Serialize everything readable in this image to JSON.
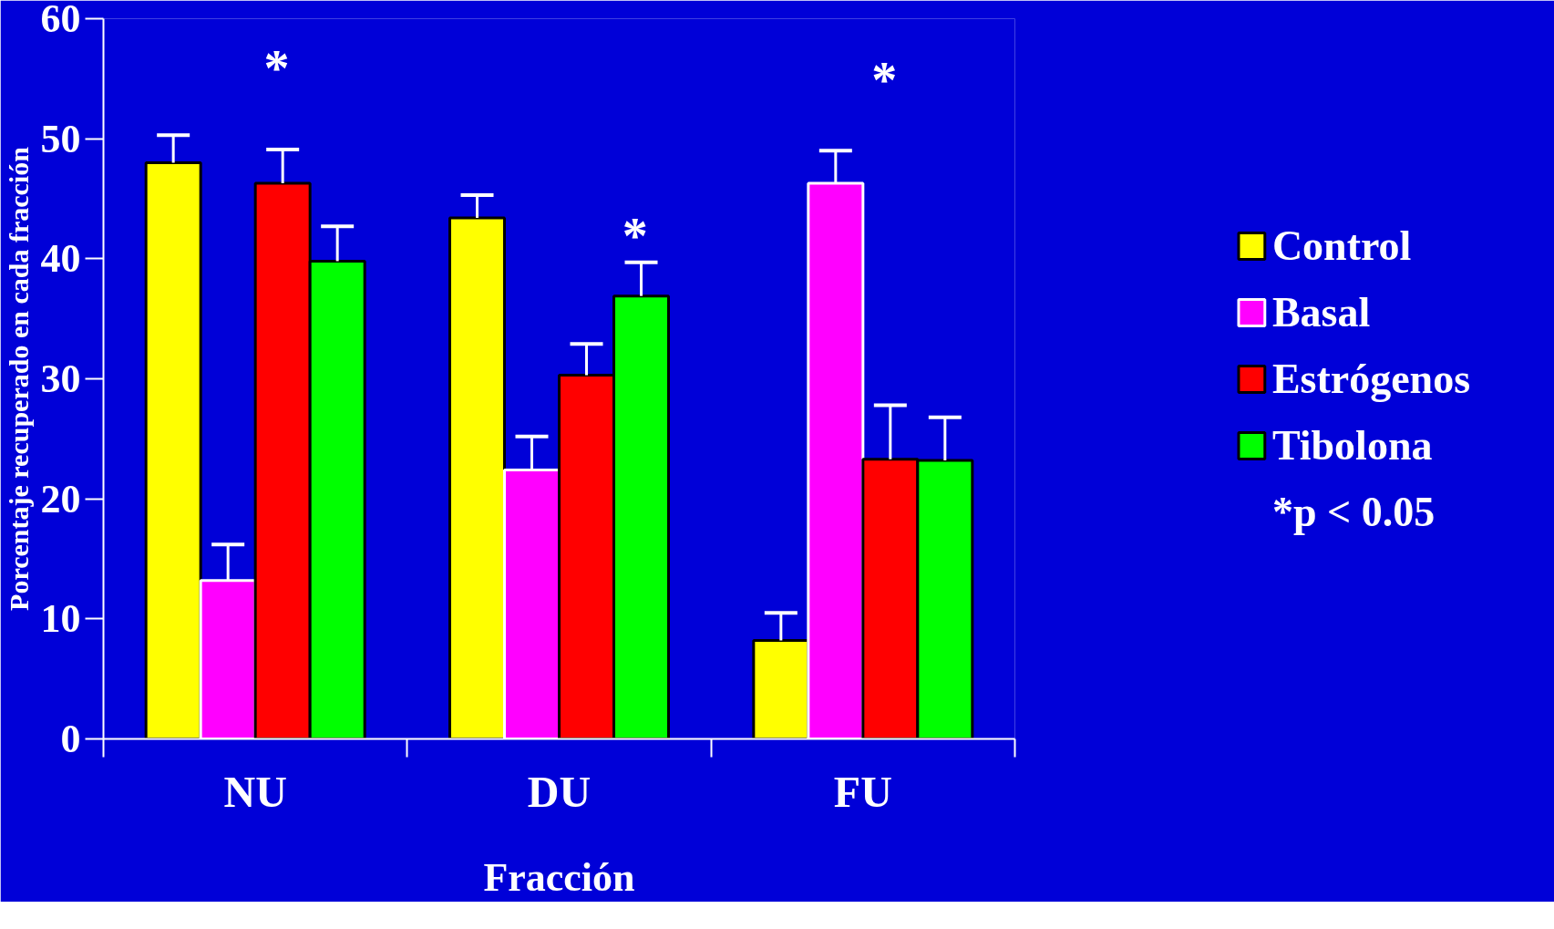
{
  "chart_data": {
    "type": "bar",
    "xlabel": "Fracción",
    "ylabel": "Porcentaje recuperado en cada fracción",
    "categories": [
      "NU",
      "DU",
      "FU"
    ],
    "series": [
      {
        "name": "Control",
        "color": "#ffff00",
        "values": [
          48.0,
          43.4,
          8.2
        ],
        "errors": [
          [
            48.0,
            50.3
          ],
          [
            43.4,
            45.3
          ],
          [
            8.2,
            10.5
          ]
        ]
      },
      {
        "name": "Basal",
        "color": "#ff00ff",
        "values": [
          13.2,
          22.4,
          46.3
        ],
        "errors": [
          [
            13.2,
            16.2
          ],
          [
            22.4,
            25.2
          ],
          [
            46.3,
            49.0
          ]
        ]
      },
      {
        "name": "Estrógenos",
        "color": "#ff0000",
        "values": [
          46.3,
          30.3,
          23.3
        ],
        "errors": [
          [
            46.3,
            49.1
          ],
          [
            30.3,
            32.9
          ],
          [
            23.3,
            27.8
          ]
        ]
      },
      {
        "name": "Tibolona",
        "color": "#00ff00",
        "values": [
          39.8,
          36.9,
          23.2
        ],
        "errors": [
          [
            39.8,
            42.7
          ],
          [
            36.9,
            39.7
          ],
          [
            23.2,
            26.8
          ]
        ]
      }
    ],
    "ylim": [
      0,
      60
    ],
    "yticks": [
      0,
      10,
      20,
      30,
      40,
      50,
      60
    ],
    "grid": false,
    "legend": "right",
    "annotations": [
      "*",
      "*",
      "*",
      "*p < 0.05"
    ]
  }
}
